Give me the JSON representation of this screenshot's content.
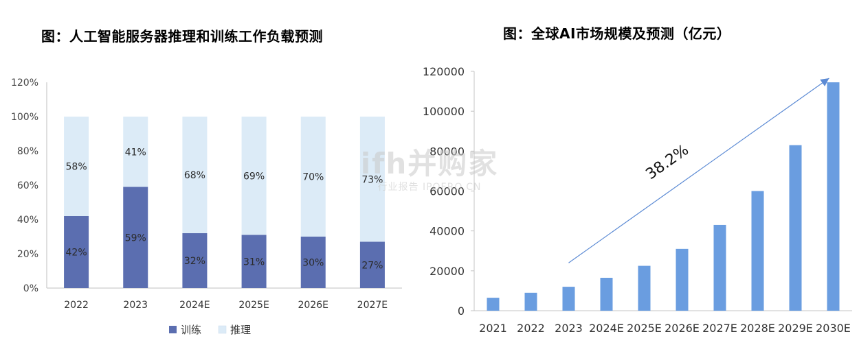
{
  "left_title": "图：人工智能服务器推理和训练工作负载预测",
  "right_title": "图：全球AI市场规模及预测（亿元）",
  "watermark": {
    "main": "ifh并购家",
    "sub": "行业报告 IPOFRO.CN"
  },
  "colors": {
    "train": "#5b6eb0",
    "infer": "#dcebf7",
    "bar_right": "#6a9de0",
    "arrow": "#5b8ad4"
  },
  "chart_data": [
    {
      "type": "bar",
      "stacked": true,
      "title": "图：人工智能服务器推理和训练工作负载预测",
      "categories": [
        "2022",
        "2023",
        "2024E",
        "2025E",
        "2026E",
        "2027E"
      ],
      "series": [
        {
          "name": "训练",
          "values": [
            42,
            59,
            32,
            31,
            30,
            27
          ],
          "labels": [
            "42%",
            "59%",
            "32%",
            "31%",
            "30%",
            "27%"
          ]
        },
        {
          "name": "推理",
          "values": [
            58,
            41,
            68,
            69,
            70,
            73
          ],
          "labels": [
            "58%",
            "41%",
            "68%",
            "69%",
            "70%",
            "73%"
          ]
        }
      ],
      "ylim": [
        0,
        120
      ],
      "yticks": [
        "0%",
        "20%",
        "40%",
        "60%",
        "80%",
        "100%",
        "120%"
      ],
      "legend_position": "bottom"
    },
    {
      "type": "bar",
      "title": "图：全球AI市场规模及预测（亿元）",
      "categories": [
        "2021",
        "2022",
        "2023",
        "2024E",
        "2025E",
        "2026E",
        "2027E",
        "2028E",
        "2029E",
        "2030E"
      ],
      "values": [
        6500,
        9000,
        12000,
        16500,
        22500,
        31000,
        43000,
        60000,
        83000,
        114500
      ],
      "ylim": [
        0,
        120000
      ],
      "yticks": [
        "0",
        "20000",
        "40000",
        "60000",
        "80000",
        "100000",
        "120000"
      ],
      "annotation": "38.2%"
    }
  ]
}
